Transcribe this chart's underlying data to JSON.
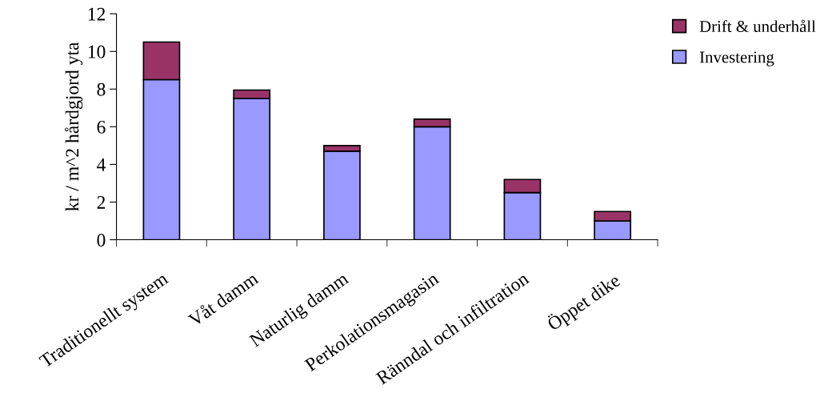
{
  "chart_data": {
    "type": "bar",
    "ylabel": "kr / m^2 hårdgjord yta",
    "categories": [
      "Traditionellt system",
      "Våt damm",
      "Naturlig damm",
      "Perkolationsmagasin",
      "Ränndal och infiltration",
      "Öppet dike"
    ],
    "stacked": true,
    "series": [
      {
        "name": "Investering",
        "color": "#9999ff",
        "values": [
          8.5,
          7.5,
          4.7,
          6.0,
          2.5,
          1.0
        ]
      },
      {
        "name": "Drift & underhåll",
        "color": "#993366",
        "values": [
          2.0,
          0.45,
          0.3,
          0.4,
          0.7,
          0.5
        ]
      }
    ],
    "ylim": [
      0,
      12
    ],
    "yticks": [
      0,
      2,
      4,
      6,
      8,
      10,
      12
    ],
    "grid": false,
    "legend": "top right"
  }
}
